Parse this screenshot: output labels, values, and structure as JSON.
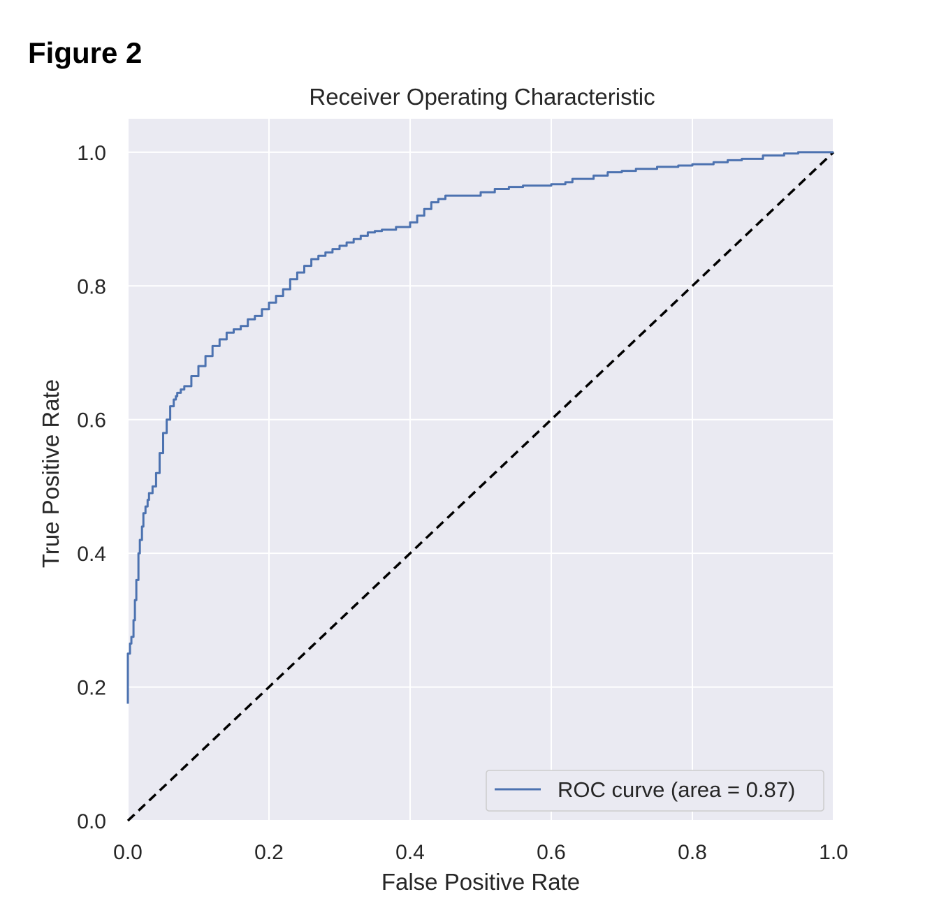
{
  "figure_label": "Figure 2",
  "colors": {
    "plot_background": "#eaeaf2",
    "grid": "#ffffff",
    "roc_line": "#4c72b0",
    "chance_line": "#000000"
  },
  "chart_data": {
    "type": "line",
    "title": "Receiver Operating Characteristic",
    "xlabel": "False Positive Rate",
    "ylabel": "True Positive Rate",
    "xlim": [
      0,
      1
    ],
    "ylim": [
      0,
      1.05
    ],
    "xticks": [
      "0.0",
      "0.2",
      "0.4",
      "0.6",
      "0.8",
      "1.0"
    ],
    "yticks": [
      "0.0",
      "0.2",
      "0.4",
      "0.6",
      "0.8",
      "1.0"
    ],
    "grid": true,
    "legend_position": "lower-right",
    "series": [
      {
        "name": "ROC curve (area = 0.87)",
        "style": "solid",
        "x": [
          0,
          0,
          0.003,
          0.005,
          0.008,
          0.01,
          0.012,
          0.015,
          0.017,
          0.02,
          0.022,
          0.025,
          0.028,
          0.03,
          0.035,
          0.04,
          0.045,
          0.05,
          0.055,
          0.06,
          0.065,
          0.068,
          0.07,
          0.075,
          0.08,
          0.09,
          0.1,
          0.11,
          0.12,
          0.13,
          0.14,
          0.15,
          0.16,
          0.17,
          0.18,
          0.19,
          0.2,
          0.21,
          0.22,
          0.23,
          0.24,
          0.25,
          0.26,
          0.27,
          0.28,
          0.29,
          0.3,
          0.31,
          0.32,
          0.33,
          0.34,
          0.35,
          0.36,
          0.38,
          0.4,
          0.41,
          0.42,
          0.43,
          0.44,
          0.45,
          0.46,
          0.5,
          0.52,
          0.54,
          0.56,
          0.6,
          0.62,
          0.63,
          0.66,
          0.68,
          0.7,
          0.72,
          0.75,
          0.78,
          0.8,
          0.83,
          0.85,
          0.87,
          0.9,
          0.93,
          0.95,
          1.0
        ],
        "y": [
          0.175,
          0.25,
          0.265,
          0.275,
          0.3,
          0.33,
          0.36,
          0.4,
          0.42,
          0.44,
          0.46,
          0.47,
          0.48,
          0.49,
          0.5,
          0.52,
          0.55,
          0.58,
          0.6,
          0.62,
          0.63,
          0.635,
          0.64,
          0.645,
          0.65,
          0.665,
          0.68,
          0.695,
          0.71,
          0.72,
          0.73,
          0.735,
          0.74,
          0.75,
          0.755,
          0.765,
          0.775,
          0.785,
          0.795,
          0.81,
          0.82,
          0.83,
          0.84,
          0.845,
          0.85,
          0.855,
          0.86,
          0.865,
          0.87,
          0.875,
          0.88,
          0.882,
          0.884,
          0.888,
          0.895,
          0.905,
          0.915,
          0.925,
          0.93,
          0.935,
          0.935,
          0.94,
          0.945,
          0.948,
          0.95,
          0.952,
          0.955,
          0.96,
          0.965,
          0.97,
          0.972,
          0.975,
          0.978,
          0.98,
          0.982,
          0.985,
          0.988,
          0.99,
          0.995,
          0.998,
          1.0,
          1.0
        ]
      },
      {
        "style": "dashed",
        "x": [
          0,
          1
        ],
        "y": [
          0,
          1
        ]
      }
    ]
  }
}
